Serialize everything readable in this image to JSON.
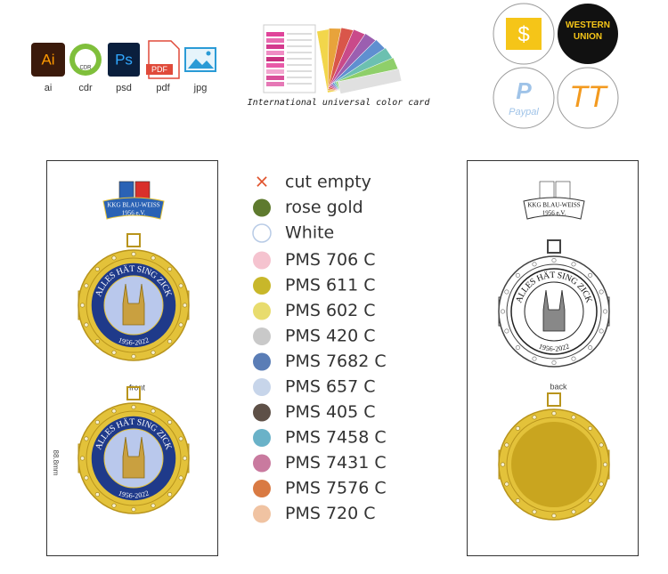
{
  "file_formats": [
    {
      "icon": "Ai",
      "label": "ai"
    },
    {
      "icon": "CDR",
      "label": "cdr"
    },
    {
      "icon": "Ps",
      "label": "psd"
    },
    {
      "icon": "PDF",
      "label": "pdf"
    },
    {
      "label": "jpg"
    }
  ],
  "color_card_caption": "International universal color card",
  "payments": {
    "western_union": "WESTERN UNION",
    "paypal": "Paypal",
    "tt": "TT",
    "dollar": "$"
  },
  "medal": {
    "club": "KKG BLAU-WEISS",
    "founded": "1956 e.V.",
    "motto": "ALLES HÄT SING ZICK",
    "years": "1956-2022"
  },
  "front_label": "front",
  "back_label": "back",
  "size_label": "88.8mm",
  "legend": [
    {
      "name": "cut empty",
      "color": "#e0522b",
      "mark": "x"
    },
    {
      "name": "rose gold",
      "color": "#5e7a2e"
    },
    {
      "name": "White",
      "color": "#ffffff"
    },
    {
      "name": "PMS 706 C",
      "color": "#f5c3cf"
    },
    {
      "name": "PMS 611 C",
      "color": "#c8b72a"
    },
    {
      "name": "PMS 602 C",
      "color": "#e8dc6e"
    },
    {
      "name": "PMS 420 C",
      "color": "#c9c9c9"
    },
    {
      "name": "PMS 7682 C",
      "color": "#5a7db6"
    },
    {
      "name": "PMS 657 C",
      "color": "#c7d5ea"
    },
    {
      "name": "PMS 405 C",
      "color": "#5e5047"
    },
    {
      "name": "PMS 7458 C",
      "color": "#6ab2c8"
    },
    {
      "name": "PMS 7431 C",
      "color": "#c97a9f"
    },
    {
      "name": "PMS 7576 C",
      "color": "#d97a43"
    },
    {
      "name": "PMS 720 C",
      "color": "#f0c3a2"
    }
  ]
}
